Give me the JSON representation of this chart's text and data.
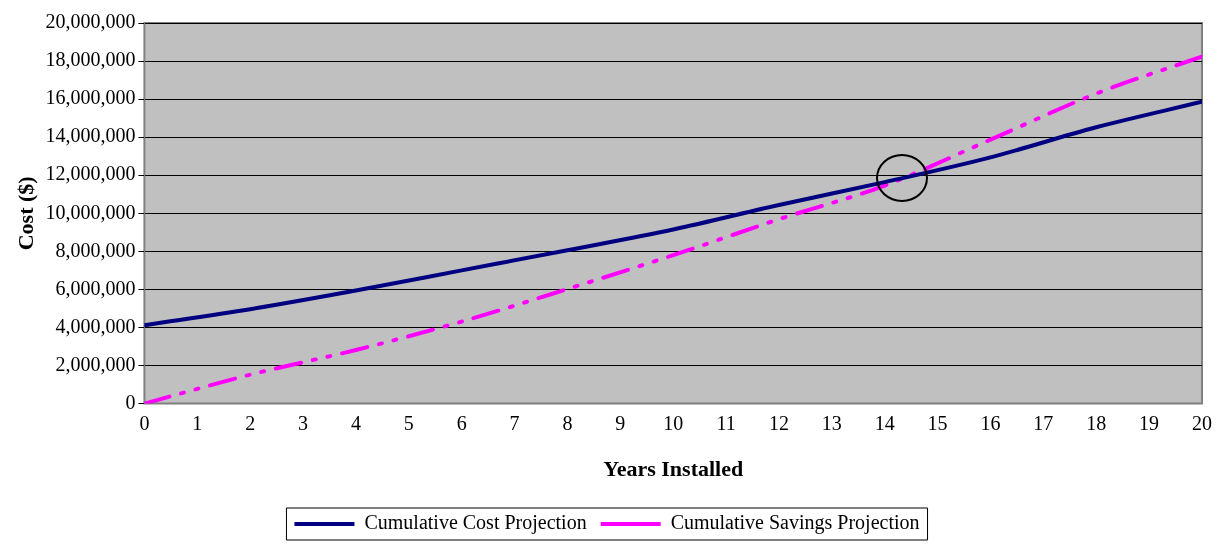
{
  "chart_data": {
    "type": "line",
    "xlabel": "Years Installed",
    "ylabel": "Cost ($)",
    "x": [
      0,
      2,
      4,
      6,
      8,
      10,
      12,
      14,
      16,
      18,
      20
    ],
    "series": [
      {
        "name": "Cumulative Cost Projection",
        "color": "#000080",
        "line_style": "solid",
        "values": [
          4120000,
          4960000,
          5940000,
          7000000,
          8060000,
          9150000,
          10440000,
          11640000,
          12940000,
          14520000,
          15860000
        ]
      },
      {
        "name": "Cumulative Savings Projection",
        "color": "#ff00ff",
        "line_style": "dashed",
        "values": [
          0,
          1520000,
          2820000,
          4310000,
          6020000,
          7800000,
          9690000,
          11460000,
          13870000,
          16290000,
          18240000
        ]
      }
    ],
    "xlim": [
      0,
      20
    ],
    "xticks": [
      0,
      1,
      2,
      3,
      4,
      5,
      6,
      7,
      8,
      9,
      10,
      11,
      12,
      13,
      14,
      15,
      16,
      17,
      18,
      19,
      20
    ],
    "ylim": [
      0,
      20000000
    ],
    "yticks": [
      0,
      {
        "value": 2000000,
        "label": "2,000,000"
      },
      {
        "value": 4000000,
        "label": "4,000,000"
      },
      {
        "value": 6000000,
        "label": "6,000,000"
      },
      {
        "value": 8000000,
        "label": "8,000,000"
      },
      {
        "value": 10000000,
        "label": "10,000,000"
      },
      {
        "value": 12000000,
        "label": "12,000,000"
      },
      {
        "value": 14000000,
        "label": "14,000,000"
      },
      {
        "value": 16000000,
        "label": "16,000,000"
      },
      {
        "value": 18000000,
        "label": "18,000,000"
      },
      {
        "value": 20000000,
        "label": "20,000,000"
      }
    ],
    "grid": "y",
    "legend": "bottom",
    "marker": "none"
  }
}
